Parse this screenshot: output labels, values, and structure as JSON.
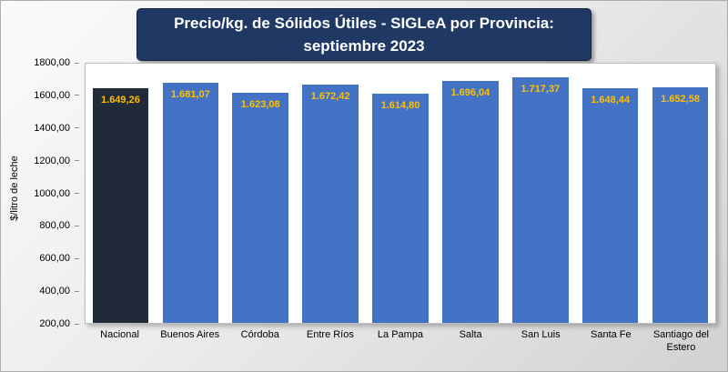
{
  "colors": {
    "bar": "#4472C4",
    "nacional_bar": "#212A38",
    "value_label": "#FFC000",
    "title_bg": "#1F3864",
    "title_text": "#FFFFFF"
  },
  "chart_data": {
    "type": "bar",
    "title": "Precio/kg. de Sólidos Útiles - SIGLeA por Provincia: septiembre 2023",
    "title_line1": "Precio/kg. de Sólidos Útiles - SIGLeA por Provincia:",
    "title_line2": "septiembre 2023",
    "ylabel": "$/litro de leche",
    "ylim": [
      200,
      1800
    ],
    "y_ticks": [
      "1800,00",
      "1600,00",
      "1400,00",
      "1200,00",
      "1000,00",
      "800,00",
      "600,00",
      "400,00",
      "200,00"
    ],
    "categories": [
      "Nacional",
      "Buenos Aires",
      "Córdoba",
      "Entre Ríos",
      "La Pampa",
      "Salta",
      "San Luis",
      "Santa Fe",
      "Santiago del Estero"
    ],
    "values": [
      1649.26,
      1681.07,
      1623.08,
      1672.42,
      1614.8,
      1696.04,
      1717.37,
      1648.44,
      1652.58
    ],
    "value_labels": [
      "1.649,26",
      "1.681,07",
      "1.623,08",
      "1.672,42",
      "1.614,80",
      "1.696,04",
      "1.717,37",
      "1.648,44",
      "1.652,58"
    ],
    "grid": false,
    "legend": false
  }
}
